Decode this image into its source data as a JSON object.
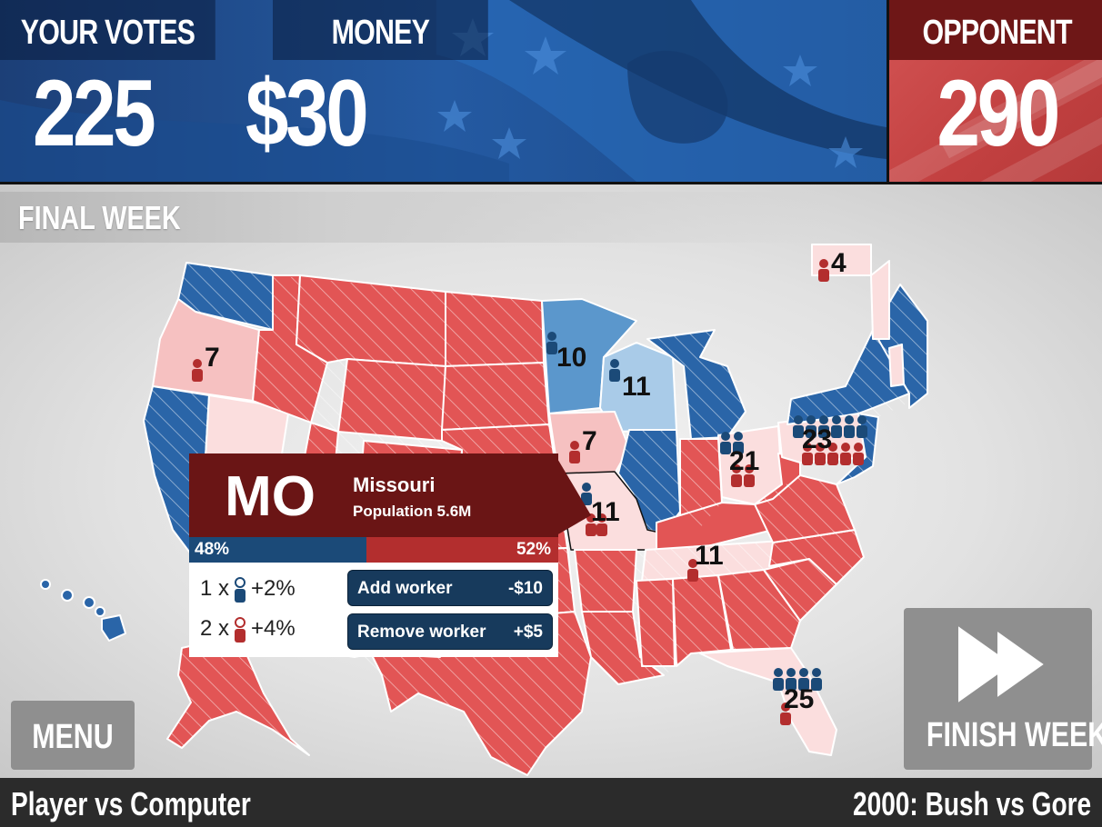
{
  "header": {
    "votes_label": "YOUR VOTES",
    "votes_value": "225",
    "money_label": "MONEY",
    "money_value": "$30",
    "opponent_label": "OPPONENT",
    "opponent_value": "290"
  },
  "week": {
    "label": "FINAL WEEK"
  },
  "colors": {
    "blue_strong": "#2a65a8",
    "blue_light": "#a9cbe8",
    "blue_mid": "#5b97cc",
    "red_strong": "#e25555",
    "red_light": "#f6c1c1",
    "red_pale": "#fbdede",
    "tooltip": "#6a1515",
    "button": "#173a5c"
  },
  "map": {
    "state_labels": [
      {
        "state": "AK",
        "votes": "4"
      },
      {
        "state": "OR",
        "votes": "7"
      },
      {
        "state": "MN",
        "votes": "10"
      },
      {
        "state": "WI",
        "votes": "11"
      },
      {
        "state": "IA",
        "votes": "7"
      },
      {
        "state": "OH",
        "votes": "21"
      },
      {
        "state": "PA",
        "votes": "23"
      },
      {
        "state": "MO",
        "votes": "11"
      },
      {
        "state": "TN",
        "votes": "11"
      },
      {
        "state": "FL",
        "votes": "25"
      }
    ]
  },
  "popup": {
    "abbr": "MO",
    "name": "Missouri",
    "population": "Population 5.6M",
    "blue_share": 48,
    "blue_pct": "48%",
    "red_pct": "52%",
    "row1_count": "1 x",
    "row1_effect": "+2%",
    "row2_count": "2 x",
    "row2_effect": "+4%",
    "add_label": "Add worker",
    "add_cost": "-$10",
    "remove_label": "Remove worker",
    "remove_cost": "+$5"
  },
  "buttons": {
    "menu": "MENU",
    "finish": "FINISH WEEK"
  },
  "footer": {
    "mode": "Player vs Computer",
    "scenario": "2000: Bush vs Gore"
  }
}
